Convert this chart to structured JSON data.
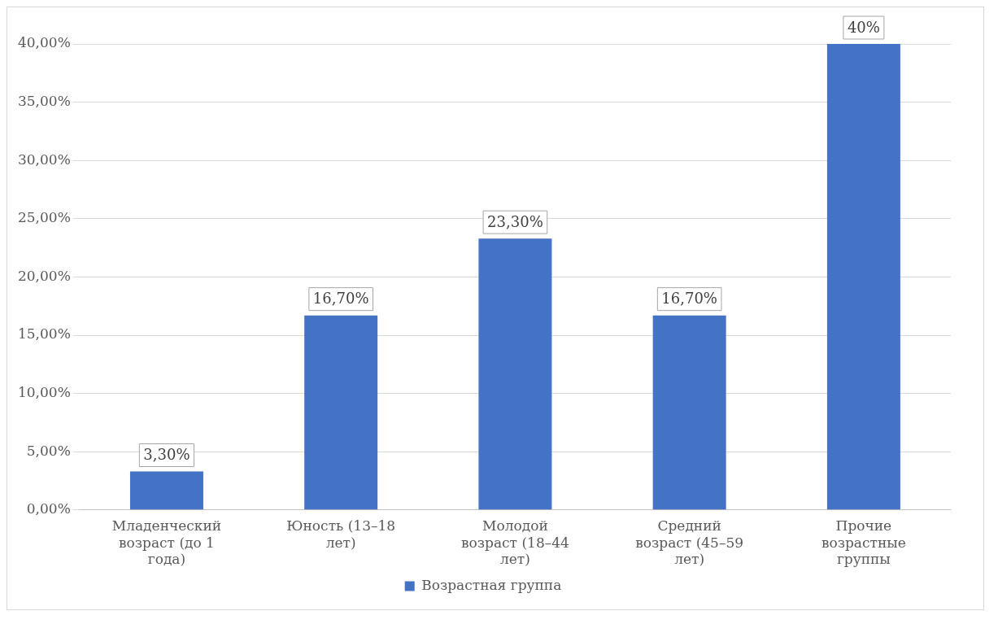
{
  "chart_data": {
    "type": "bar",
    "categories": [
      "Младенческий возраст (до 1 года)",
      "Юность (13–18 лет)",
      "Молодой возраст (18–44 лет)",
      "Средний возраст (45–59 лет)",
      "Прочие возрастные группы"
    ],
    "series": [
      {
        "name": "Возрастная группа",
        "color": "#4472c4",
        "values": [
          3.3,
          16.7,
          23.3,
          16.7,
          40
        ],
        "value_labels": [
          "3,30%",
          "16,70%",
          "23,30%",
          "16,70%",
          "40%"
        ]
      }
    ],
    "ylim": [
      0,
      40
    ],
    "yticks": [
      {
        "value": 0,
        "label": "0,00%"
      },
      {
        "value": 5,
        "label": "5,00%"
      },
      {
        "value": 10,
        "label": "10,00%"
      },
      {
        "value": 15,
        "label": "15,00%"
      },
      {
        "value": 20,
        "label": "20,00%"
      },
      {
        "value": 25,
        "label": "25,00%"
      },
      {
        "value": 30,
        "label": "30,00%"
      },
      {
        "value": 35,
        "label": "35,00%"
      },
      {
        "value": 40,
        "label": "40,00%"
      }
    ],
    "grid": "y",
    "legend": "bottom"
  }
}
